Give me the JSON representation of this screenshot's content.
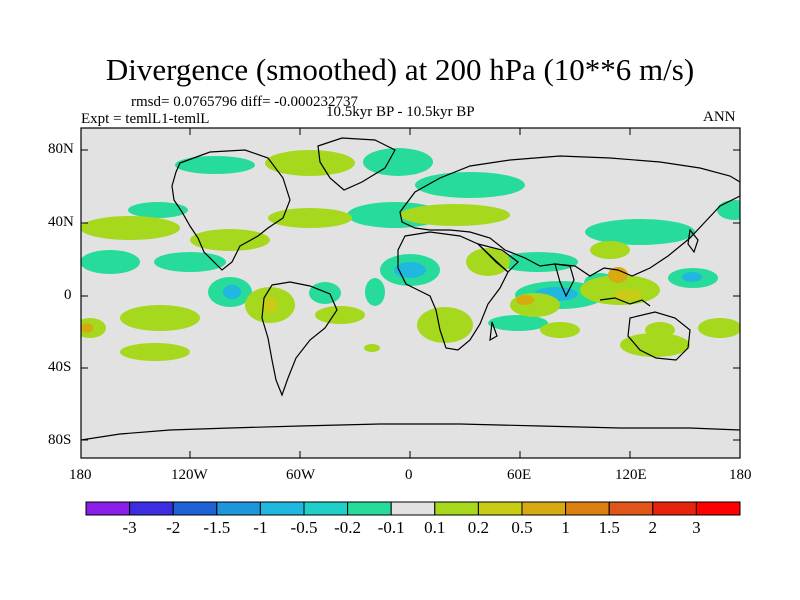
{
  "title": "Divergence (smoothed) at 200 hPa (10**6 m/s)",
  "stats": {
    "text": "rmsd= 0.0765796 diff= -0.000232737"
  },
  "experiment": "Expt = temlL1-temlL",
  "period": "10.5kyr BP - 10.5kyr BP",
  "season": "ANN",
  "axes": {
    "y_ticks": [
      "80N",
      "40N",
      "0",
      "40S",
      "80S"
    ],
    "x_ticks": [
      "180",
      "120W",
      "60W",
      "0",
      "60E",
      "120E",
      "180"
    ]
  },
  "colorbar": {
    "labels": [
      "-3",
      "-2",
      "-1.5",
      "-1",
      "-0.5",
      "-0.2",
      "-0.1",
      "0.1",
      "0.2",
      "0.5",
      "1",
      "1.5",
      "2",
      "3"
    ],
    "colors": [
      "#8a1ee8",
      "#3a2ee0",
      "#1f62d6",
      "#1e96dc",
      "#21b8e0",
      "#20cfc8",
      "#27dc9a",
      "#e2e2e2",
      "#a6d81e",
      "#c8cc14",
      "#d8aa12",
      "#dc8014",
      "#e0561a",
      "#e6240e",
      "#ff0000"
    ]
  },
  "colors": {
    "land_outline": "#000000",
    "neutral": "#e2e2e2"
  }
}
